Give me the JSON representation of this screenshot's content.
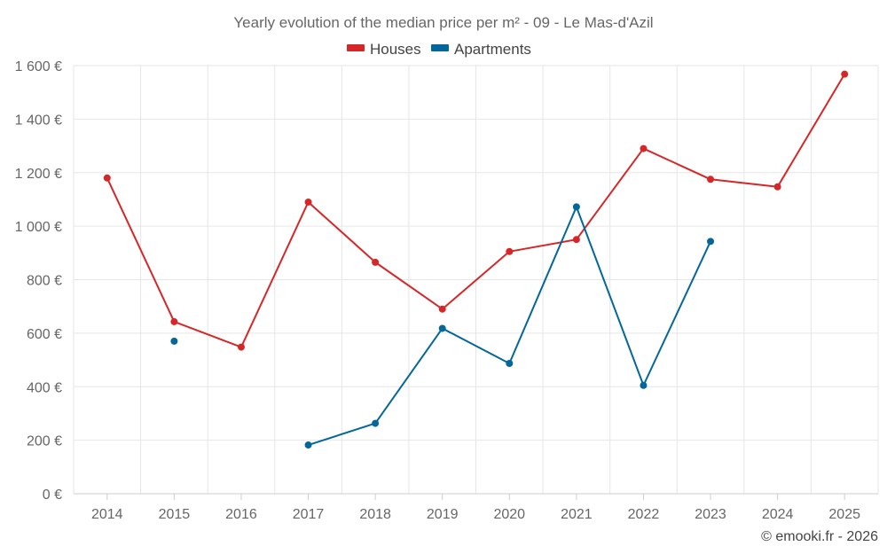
{
  "chart_data": {
    "type": "line",
    "title": "Yearly evolution of the median price per m² - 09 - Le Mas-d'Azil",
    "x": [
      "2014",
      "2015",
      "2016",
      "2017",
      "2018",
      "2019",
      "2020",
      "2021",
      "2022",
      "2023",
      "2024",
      "2025"
    ],
    "y_ticks": [
      "0 €",
      "200 €",
      "400 €",
      "600 €",
      "800 €",
      "1 000 €",
      "1 200 €",
      "1 400 €",
      "1 600 €"
    ],
    "ylim": [
      0,
      1600
    ],
    "grid": true,
    "legend_position": "top-center",
    "series": [
      {
        "name": "Houses",
        "color": "#d62728",
        "values": [
          1180,
          643,
          548,
          1090,
          865,
          690,
          905,
          950,
          1290,
          1175,
          1147,
          1568
        ]
      },
      {
        "name": "Apartments",
        "color": "#03679a",
        "values": [
          null,
          570,
          null,
          182,
          263,
          618,
          487,
          1072,
          405,
          943,
          null,
          null
        ]
      }
    ]
  },
  "credit": "© emooki.fr - 2026"
}
